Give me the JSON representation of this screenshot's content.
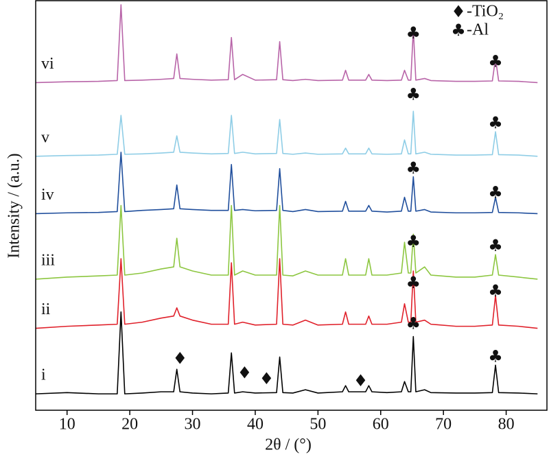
{
  "chart_data": {
    "type": "line",
    "xlabel": "2θ / (°)",
    "ylabel": "Intensity / (a.u.)",
    "xlim": [
      5,
      86.5
    ],
    "xticks": [
      10,
      20,
      30,
      40,
      50,
      60,
      70,
      80
    ],
    "ylim": [
      0,
      100
    ],
    "x": [
      5,
      10,
      15,
      18.0,
      18.6,
      19.2,
      22,
      25,
      27.0,
      27.5,
      28.0,
      30,
      33,
      35.7,
      36.2,
      36.7,
      38,
      40,
      43.4,
      43.9,
      44.4,
      46,
      48,
      50,
      53.9,
      54.4,
      54.9,
      57.6,
      58.1,
      58.6,
      61,
      63.3,
      63.8,
      64.4,
      64.8,
      65.2,
      65.6,
      67.0,
      68,
      72,
      75,
      77.8,
      78.3,
      78.8,
      82,
      85
    ],
    "series": [
      {
        "name": "i",
        "color": "#000000",
        "values": [
          4,
          4.3,
          4,
          4,
          24,
          4,
          4.2,
          4.5,
          4.5,
          10,
          4.5,
          4.2,
          4,
          4.2,
          14,
          4.2,
          4.5,
          4.2,
          4.3,
          13,
          4.3,
          4.2,
          5,
          4.2,
          4.5,
          6,
          4.5,
          4.5,
          6,
          4.5,
          4.3,
          4.5,
          7,
          4.5,
          4.5,
          18,
          4.5,
          5,
          4.3,
          4.2,
          4.2,
          4.3,
          11,
          4.3,
          4.2,
          4
        ]
      },
      {
        "name": "ii",
        "color": "#e0202a",
        "values": [
          20,
          20.5,
          20.8,
          21,
          37,
          21,
          21.5,
          22.5,
          23,
          25,
          23,
          22,
          21,
          21,
          36,
          21,
          21.5,
          20.8,
          21,
          37,
          21,
          20.8,
          22,
          20.8,
          21,
          24,
          21,
          21,
          23,
          21,
          21,
          21.5,
          26,
          21.5,
          21.5,
          34,
          21.5,
          22,
          21,
          20.5,
          20.5,
          20.8,
          28,
          20.8,
          20.5,
          20
        ]
      },
      {
        "name": "iii",
        "color": "#8cc63f",
        "values": [
          32,
          32.5,
          32.8,
          33,
          50,
          33,
          33.5,
          34.5,
          35,
          42,
          35,
          34,
          33,
          33,
          50,
          33,
          34,
          33,
          33,
          50,
          33,
          32.8,
          34,
          33,
          33,
          37,
          33,
          33,
          37,
          33,
          33,
          33.5,
          41,
          33.5,
          33.5,
          43,
          33.5,
          35,
          33,
          32.5,
          32.5,
          33,
          38,
          33,
          32.5,
          32
        ]
      },
      {
        "name": "iv",
        "color": "#1f4e9c",
        "values": [
          48,
          48.2,
          48.3,
          48.5,
          63,
          48.5,
          48.8,
          49,
          49.2,
          55,
          49.2,
          49,
          48.8,
          48.8,
          60,
          48.8,
          49,
          48.7,
          48.8,
          59,
          48.8,
          48.5,
          49,
          48.5,
          48.6,
          51,
          48.6,
          48.6,
          50,
          48.6,
          48.4,
          48.6,
          52,
          48.6,
          48.6,
          57,
          48.6,
          49,
          48.4,
          48.2,
          48.2,
          48.3,
          52,
          48.3,
          48.2,
          48
        ]
      },
      {
        "name": "v",
        "color": "#8ecde6",
        "values": [
          62,
          62.2,
          62.3,
          62.5,
          72,
          62.5,
          62.6,
          62.8,
          63,
          67,
          63,
          62.8,
          62.6,
          62.7,
          72,
          62.7,
          63,
          62.6,
          62.7,
          71,
          62.7,
          62.5,
          62.8,
          62.5,
          62.6,
          64,
          62.6,
          62.6,
          64,
          62.6,
          62.5,
          62.6,
          66,
          62.6,
          62.6,
          73,
          62.6,
          63,
          62.5,
          62.3,
          62.3,
          62.4,
          68,
          62.4,
          62.3,
          62
        ]
      },
      {
        "name": "vi",
        "color": "#b864a8",
        "values": [
          80,
          80.2,
          80.3,
          80.5,
          99,
          80.5,
          80.6,
          80.8,
          81,
          87,
          81,
          80.8,
          80.6,
          80.7,
          91,
          80.7,
          82,
          80.6,
          80.7,
          90,
          80.7,
          80.5,
          80.8,
          80.5,
          80.6,
          83,
          80.6,
          80.6,
          82,
          80.6,
          80.5,
          80.6,
          83,
          80.6,
          80.6,
          93,
          80.6,
          81,
          80.5,
          80.3,
          80.3,
          80.4,
          86,
          80.4,
          80.3,
          80
        ]
      }
    ],
    "legend": [
      {
        "symbol": "♦",
        "label": "-TiO₂"
      },
      {
        "symbol": "♣",
        "label": "-Al"
      }
    ],
    "annotations": [
      {
        "text": "♦",
        "x": 28,
        "y": 12.5
      },
      {
        "text": "♦",
        "x": 38.3,
        "y": 9
      },
      {
        "text": "♦",
        "x": 41.8,
        "y": 7.5
      },
      {
        "text": "♦",
        "x": 56.8,
        "y": 7
      },
      {
        "text": "♣",
        "x": 65.2,
        "y": 21
      },
      {
        "text": "♣",
        "x": 78.3,
        "y": 13
      },
      {
        "text": "♣",
        "x": 65.2,
        "y": 31
      },
      {
        "text": "♣",
        "x": 78.3,
        "y": 29
      },
      {
        "text": "♣",
        "x": 65.2,
        "y": 41
      },
      {
        "text": "♣",
        "x": 78.3,
        "y": 40
      },
      {
        "text": "♣",
        "x": 65.2,
        "y": 59
      },
      {
        "text": "♣",
        "x": 78.3,
        "y": 53
      },
      {
        "text": "♣",
        "x": 65.2,
        "y": 77
      },
      {
        "text": "♣",
        "x": 78.3,
        "y": 70
      },
      {
        "text": "♣",
        "x": 65.2,
        "y": 92
      },
      {
        "text": "♣",
        "x": 78.3,
        "y": 85
      }
    ]
  }
}
